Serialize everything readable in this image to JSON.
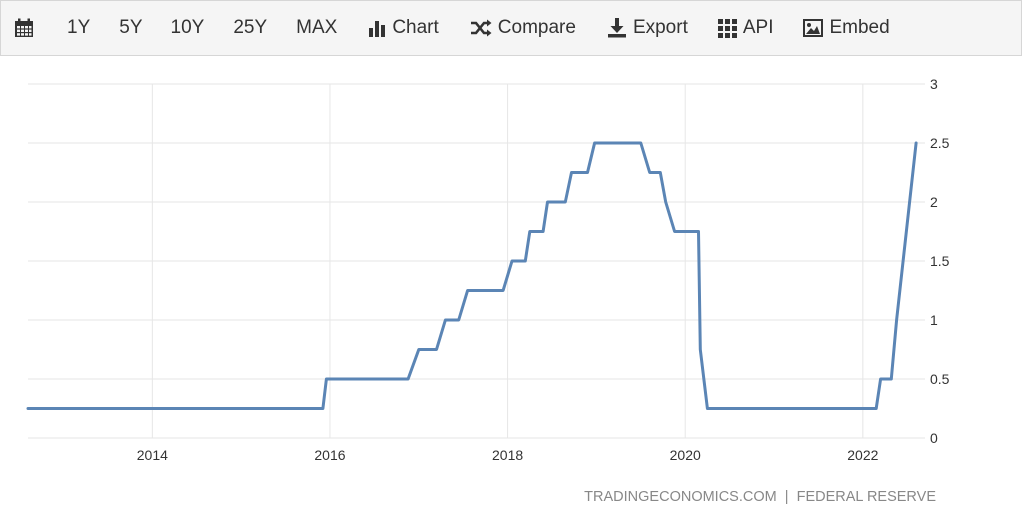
{
  "toolbar": {
    "range_buttons": [
      "1Y",
      "5Y",
      "10Y",
      "25Y",
      "MAX"
    ],
    "chart_label": "Chart",
    "compare_label": "Compare",
    "export_label": "Export",
    "api_label": "API",
    "embed_label": "Embed"
  },
  "colors": {
    "line": "#5b85b5",
    "grid": "#e6e6e6",
    "axis_text": "#333333",
    "source_text": "#888888",
    "toolbar_bg": "#f5f5f5"
  },
  "source": "TRADINGECONOMICS.COM  |  FEDERAL RESERVE",
  "chart_data": {
    "type": "line",
    "title": "",
    "xlabel": "",
    "ylabel": "",
    "xlim": [
      2012.6,
      2022.7
    ],
    "ylim": [
      0,
      3
    ],
    "y_ticks": [
      0,
      0.5,
      1,
      1.5,
      2,
      2.5,
      3
    ],
    "y_tick_labels": [
      "0",
      "0.5",
      "1",
      "1.5",
      "2",
      "2.5",
      "3"
    ],
    "x_ticks": [
      2014,
      2016,
      2018,
      2020,
      2022
    ],
    "x_tick_labels": [
      "2014",
      "2016",
      "2018",
      "2020",
      "2022"
    ],
    "grid": true,
    "series": [
      {
        "name": "",
        "x": [
          2012.6,
          2015.92,
          2015.96,
          2016.88,
          2017.0,
          2017.2,
          2017.3,
          2017.45,
          2017.55,
          2017.95,
          2018.05,
          2018.2,
          2018.25,
          2018.4,
          2018.45,
          2018.65,
          2018.72,
          2018.9,
          2018.98,
          2019.5,
          2019.6,
          2019.72,
          2019.78,
          2019.88,
          2020.15,
          2020.17,
          2020.25,
          2022.15,
          2022.2,
          2022.32,
          2022.38,
          2022.6
        ],
        "y": [
          0.25,
          0.25,
          0.5,
          0.5,
          0.75,
          0.75,
          1.0,
          1.0,
          1.25,
          1.25,
          1.5,
          1.5,
          1.75,
          1.75,
          2.0,
          2.0,
          2.25,
          2.25,
          2.5,
          2.5,
          2.25,
          2.25,
          2.0,
          1.75,
          1.75,
          0.75,
          0.25,
          0.25,
          0.5,
          0.5,
          1.0,
          2.5
        ]
      }
    ]
  }
}
